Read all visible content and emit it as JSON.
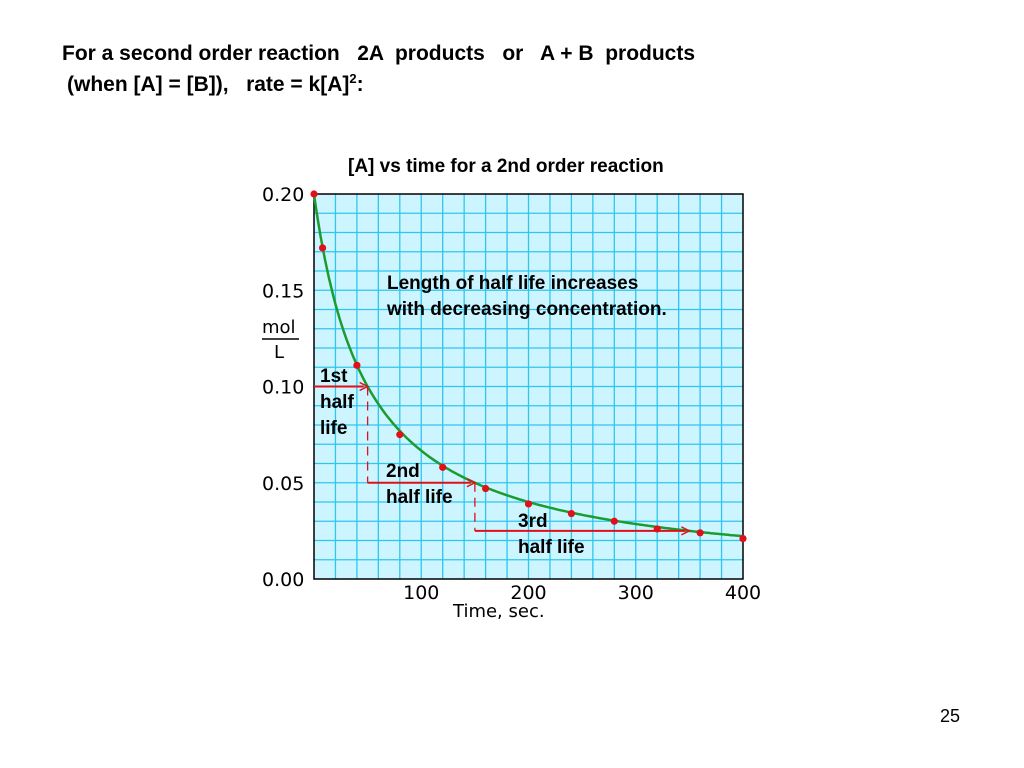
{
  "slide": {
    "heading_line1": "For a second order reaction   2A  products   or   A + B  products",
    "heading_line2_pre": "(when [A] = [B]),   rate = k[A]",
    "heading_line2_sup": "2",
    "heading_line2_post": ":",
    "page_number": "25"
  },
  "chart_data": {
    "type": "scatter",
    "title": "[A] vs time for a 2nd order reaction",
    "xlabel": "Time, sec.",
    "ylabel_numerator": "mol",
    "ylabel_denominator": "L",
    "xlim": [
      0,
      400
    ],
    "ylim": [
      0,
      0.2
    ],
    "grid": true,
    "x_ticks": [
      "100",
      "200",
      "300",
      "400"
    ],
    "y_ticks": [
      "0.00",
      "0.05",
      "0.10",
      "0.15",
      "0.20"
    ],
    "curve": {
      "model": "second-order",
      "A0": 0.2,
      "k": 0.1
    },
    "points": [
      {
        "x": 0,
        "y": 0.2
      },
      {
        "x": 8,
        "y": 0.172
      },
      {
        "x": 40,
        "y": 0.111
      },
      {
        "x": 80,
        "y": 0.075
      },
      {
        "x": 120,
        "y": 0.058
      },
      {
        "x": 160,
        "y": 0.047
      },
      {
        "x": 200,
        "y": 0.039
      },
      {
        "x": 240,
        "y": 0.034
      },
      {
        "x": 280,
        "y": 0.03
      },
      {
        "x": 320,
        "y": 0.026
      },
      {
        "x": 360,
        "y": 0.024
      },
      {
        "x": 400,
        "y": 0.021
      }
    ],
    "half_lives": [
      {
        "label_lines": [
          "1st",
          "half",
          "life"
        ],
        "y": 0.1,
        "x_start": 0,
        "x_end": 50
      },
      {
        "label_lines": [
          "2nd",
          "half life"
        ],
        "y": 0.05,
        "x_start": 50,
        "x_end": 150
      },
      {
        "label_lines": [
          "3rd",
          "half life"
        ],
        "y": 0.025,
        "x_start": 150,
        "x_end": 350
      }
    ],
    "annotation_lines": [
      "Length of half life increases",
      "with decreasing concentration."
    ],
    "colors": {
      "background": "#ccf5ff",
      "grid": "#2ec6f0",
      "curve": "#1a9d2e",
      "points": "#e0101a",
      "half_life_lines": "#e0101a",
      "frame": "#000000"
    }
  }
}
